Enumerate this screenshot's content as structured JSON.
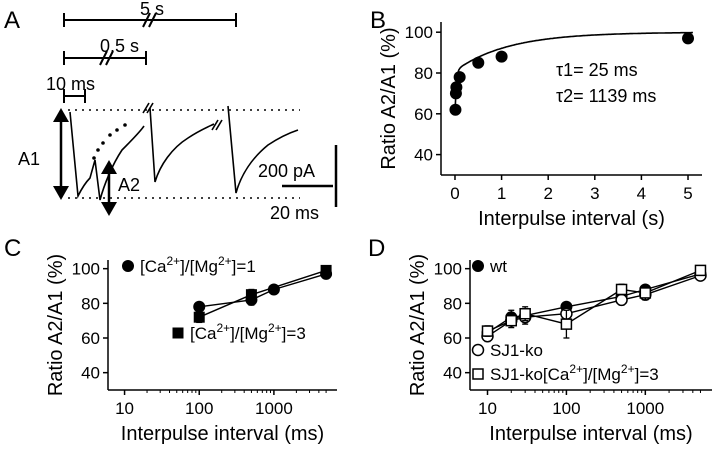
{
  "panels": {
    "A": {
      "letter": "A",
      "timing_labels": [
        "5 s",
        "0.5 s",
        "10 ms"
      ],
      "amp_labels": [
        "A1",
        "A2"
      ],
      "scale_amp": "200 pA",
      "scale_time": "20 ms"
    },
    "B": {
      "letter": "B",
      "tau1": "τ1= 25 ms",
      "tau2": "τ2= 1139 ms"
    },
    "C": {
      "letter": "C"
    },
    "D": {
      "letter": "D"
    }
  },
  "chart_data": [
    {
      "panel": "B",
      "type": "scatter",
      "xlabel": "Interpulse interval (s)",
      "ylabel": "Ratio A2/A1 (%)",
      "xlim": [
        -0.3,
        5.3
      ],
      "ylim": [
        30,
        105
      ],
      "xticks": [
        0,
        1,
        2,
        3,
        4,
        5
      ],
      "yticks": [
        40,
        60,
        80,
        100
      ],
      "series": [
        {
          "x": [
            0.01,
            0.02,
            0.03,
            0.1,
            0.5,
            1,
            5
          ],
          "y": [
            62,
            70,
            73,
            78,
            85,
            88,
            97
          ]
        }
      ],
      "fit": {
        "tau1_s": 0.025,
        "tau2_s": 1.139
      }
    },
    {
      "panel": "C",
      "type": "line",
      "x_scale": "log",
      "xlabel": "Interpulse interval (ms)",
      "ylabel": "Ratio A2/A1 (%)",
      "xlim": [
        6,
        7000
      ],
      "ylim": [
        30,
        105
      ],
      "xticks": [
        10,
        100,
        1000
      ],
      "yticks": [
        40,
        60,
        80,
        100
      ],
      "series": [
        {
          "name": "[Ca2+]/[Mg2+]=1",
          "marker": "filled-circle",
          "x": [
            100,
            500,
            1000,
            5000
          ],
          "y": [
            78,
            82,
            88,
            97
          ],
          "err": [
            2,
            3,
            2,
            2
          ]
        },
        {
          "name": "[Ca2+]/[Mg2+]=3",
          "marker": "filled-square",
          "x": [
            100,
            500,
            5000
          ],
          "y": [
            72,
            85,
            99
          ],
          "err": [
            3,
            3,
            2
          ]
        }
      ]
    },
    {
      "panel": "D",
      "type": "line",
      "x_scale": "log",
      "xlabel": "Interpulse interval (ms)",
      "ylabel": "Ratio A2/A1 (%)",
      "xlim": [
        6,
        7000
      ],
      "ylim": [
        30,
        105
      ],
      "xticks": [
        10,
        100,
        1000
      ],
      "yticks": [
        40,
        60,
        80,
        100
      ],
      "series": [
        {
          "name": "wt",
          "marker": "filled-circle",
          "x": [
            10,
            20,
            30,
            100,
            500,
            1000,
            5000
          ],
          "y": [
            63,
            72,
            73,
            78,
            84,
            88,
            97
          ],
          "err": [
            3,
            4,
            3,
            2,
            2,
            2,
            1
          ]
        },
        {
          "name": "SJ1-ko",
          "marker": "open-circle",
          "x": [
            10,
            20,
            30,
            100,
            500,
            1000,
            5000
          ],
          "y": [
            61,
            70,
            72,
            74,
            82,
            85,
            96
          ],
          "err": [
            3,
            4,
            4,
            6,
            3,
            3,
            2
          ]
        },
        {
          "name": "SJ1-ko[Ca2+]/[Mg2+]=3",
          "marker": "open-square",
          "x": [
            10,
            20,
            30,
            100,
            500,
            1000,
            5000
          ],
          "y": [
            64,
            70,
            74,
            68,
            88,
            86,
            99
          ],
          "err": [
            3,
            3,
            4,
            8,
            3,
            4,
            2
          ]
        }
      ]
    }
  ]
}
